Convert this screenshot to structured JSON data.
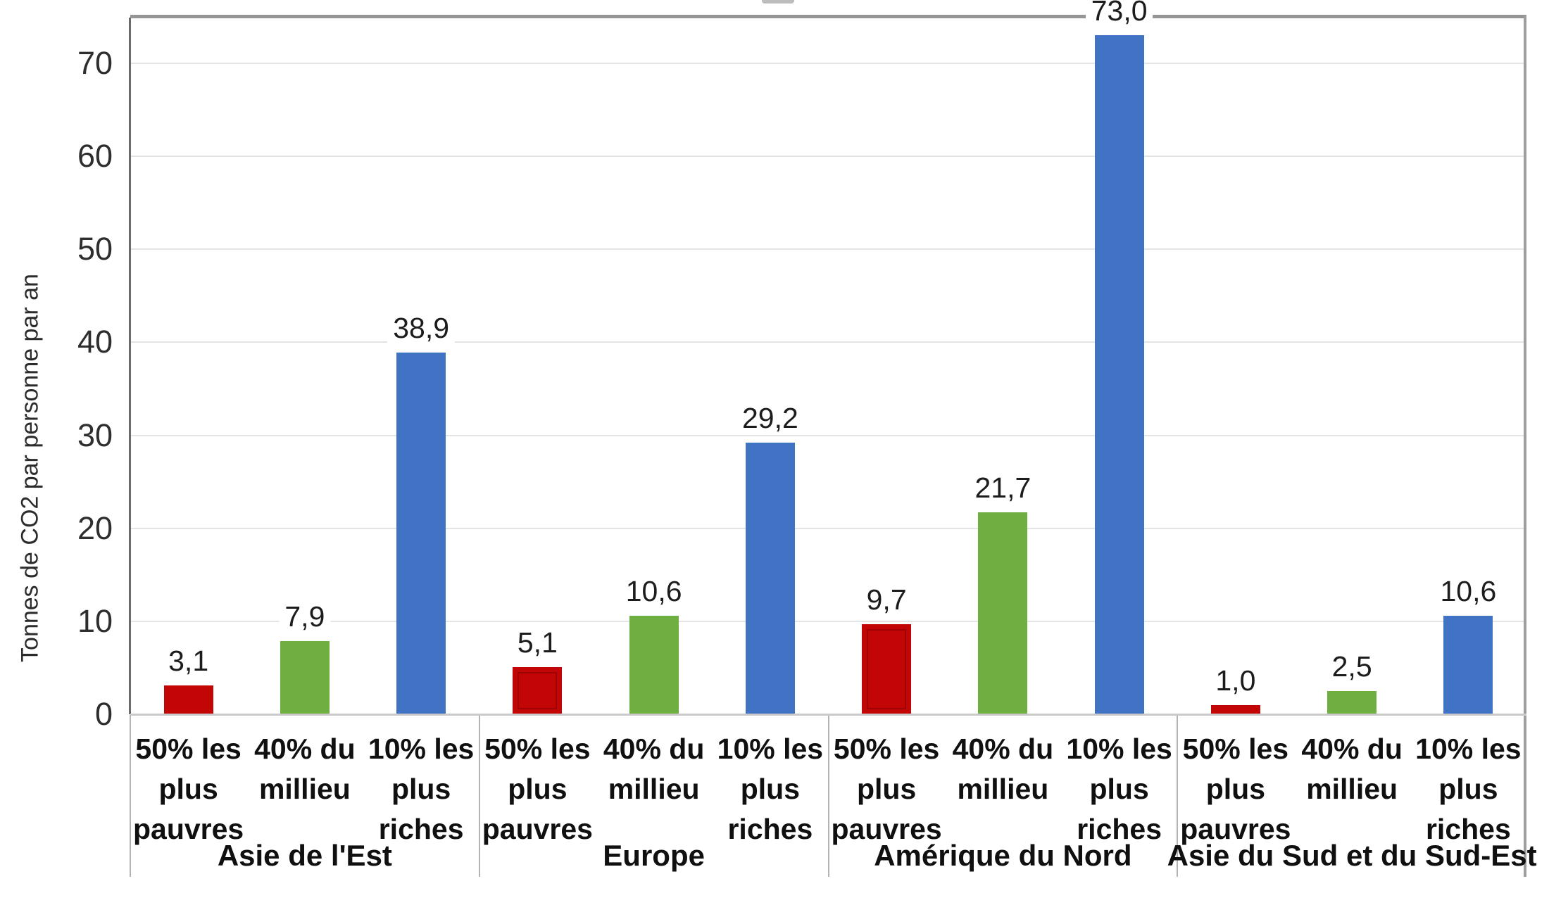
{
  "y_axis": {
    "title": "Tonnes de CO2 par personne par an",
    "ticks": [
      {
        "label": "70",
        "value": 70
      },
      {
        "label": "60",
        "value": 60
      },
      {
        "label": "50",
        "value": 50
      },
      {
        "label": "40",
        "value": 40
      },
      {
        "label": "30",
        "value": 30
      },
      {
        "label": "20",
        "value": 20
      },
      {
        "label": "10",
        "value": 10
      },
      {
        "label": "0",
        "value": 0
      }
    ]
  },
  "chart_data": {
    "type": "bar",
    "title": "",
    "ylabel": "Tonnes de CO2 par personne par an",
    "xlabel": "",
    "ylim": [
      0,
      75
    ],
    "grid": true,
    "legend_position": "none",
    "categories": [
      "50% les plus pauvres",
      "40% du millieu",
      "10% les plus riches"
    ],
    "category_display": [
      "50% les\nplus\npauvres",
      "40% du\nmillieu",
      "10% les\nplus\nriches"
    ],
    "series_colors": [
      "#c20505",
      "#6fae41",
      "#4173c4"
    ],
    "series": [
      {
        "name": "50% les plus pauvres",
        "color": "#c20505",
        "values": [
          3.1,
          5.1,
          9.7,
          1.0
        ]
      },
      {
        "name": "40% du millieu",
        "color": "#6fae41",
        "values": [
          7.9,
          10.6,
          21.7,
          2.5
        ]
      },
      {
        "name": "10% les plus riches",
        "color": "#4173c4",
        "values": [
          38.9,
          29.2,
          73.0,
          10.6
        ]
      }
    ],
    "groups": [
      {
        "region": "Asie de l'Est",
        "bars": [
          {
            "category": "50% les plus pauvres",
            "value": 3.1,
            "label": "3,1"
          },
          {
            "category": "40% du millieu",
            "value": 7.9,
            "label": "7,9"
          },
          {
            "category": "10% les plus riches",
            "value": 38.9,
            "label": "38,9"
          }
        ]
      },
      {
        "region": "Europe",
        "bars": [
          {
            "category": "50% les plus pauvres",
            "value": 5.1,
            "label": "5,1"
          },
          {
            "category": "40% du millieu",
            "value": 10.6,
            "label": "10,6"
          },
          {
            "category": "10% les plus riches",
            "value": 29.2,
            "label": "29,2"
          }
        ]
      },
      {
        "region": "Amérique du Nord",
        "bars": [
          {
            "category": "50% les plus pauvres",
            "value": 9.7,
            "label": "9,7"
          },
          {
            "category": "40% du millieu",
            "value": 21.7,
            "label": "21,7"
          },
          {
            "category": "10% les plus riches",
            "value": 73.0,
            "label": "73,0"
          }
        ]
      },
      {
        "region": "Asie du Sud et du Sud-Est",
        "bars": [
          {
            "category": "50% les plus pauvres",
            "value": 1.0,
            "label": "1,0"
          },
          {
            "category": "40% du millieu",
            "value": 2.5,
            "label": "2,5"
          },
          {
            "category": "10% les plus riches",
            "value": 10.6,
            "label": "10,6"
          }
        ]
      }
    ]
  }
}
